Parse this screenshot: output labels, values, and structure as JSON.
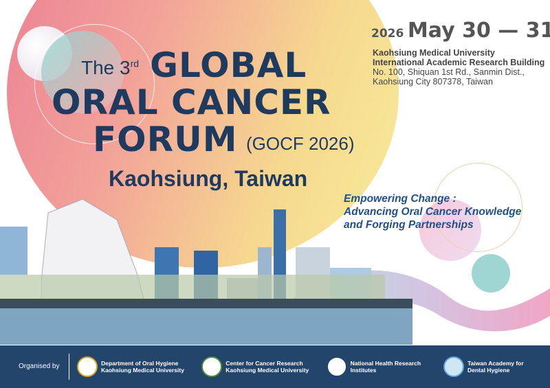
{
  "event": {
    "title_prefix": "The 3",
    "title_sup": "rd",
    "title_line1": "GLOBAL",
    "title_line2": "ORAL CANCER",
    "title_line3": "FORUM",
    "abbrev": "(GOCF 2026)",
    "location": "Kaohsiung, Taiwan"
  },
  "date": {
    "year": "2026",
    "range": "May 30 — 31"
  },
  "venue": {
    "university": "Kaohsiung Medical University",
    "building": "International Academic Research Building",
    "address1": "No. 100, Shiquan 1st Rd., Sanmin Dist.,",
    "address2": "Kaohsiung City 807378, Taiwan"
  },
  "slogan": {
    "line1": "Empowering Change :",
    "line2": "Advancing Oral Cancer Knowledge",
    "line3": "and Forging Partnerships"
  },
  "footer": {
    "label": "Organised by",
    "organisers": [
      {
        "line1": "Department of Oral Hygiene",
        "line2": "Kaohsiung Medical University",
        "color": "#d4a21c"
      },
      {
        "line1": "Center for Cancer Research",
        "line2": "Kaohsiung Medical University",
        "color": "#4f8f3b"
      },
      {
        "line1": "National Health Research Institutes",
        "line2": "",
        "color": "#23446b"
      },
      {
        "line1": "Taiwan Academy for Dental Hygiene",
        "line2": "",
        "color": "#5aa6d6"
      }
    ]
  },
  "colors": {
    "title": "#1f3a5f",
    "footer_bg": "#23446b",
    "slogan": "#1f4f8c"
  }
}
